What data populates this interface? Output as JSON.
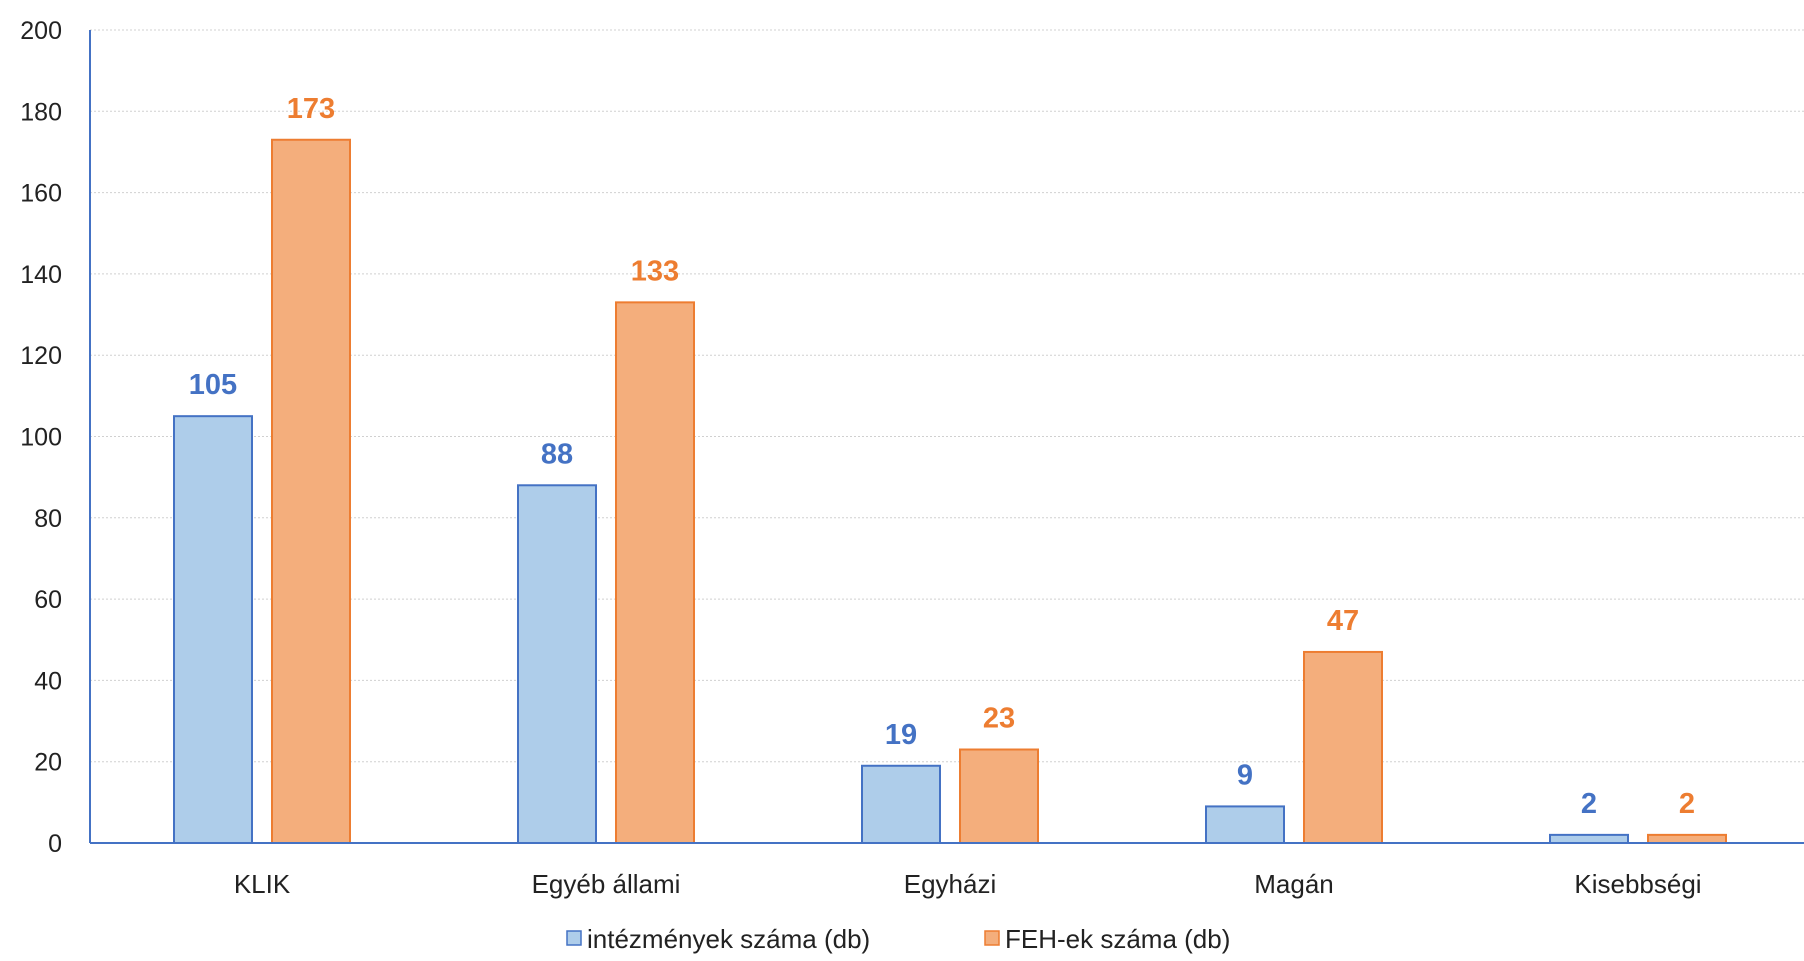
{
  "chart_data": {
    "type": "bar",
    "title": "",
    "xlabel": "",
    "ylabel": "",
    "categories": [
      "KLIK",
      "Egyéb állami",
      "Egyházi",
      "Magán",
      "Kisebbségi"
    ],
    "series": [
      {
        "name": "intézmények száma (db)",
        "values": [
          105,
          88,
          19,
          9,
          2
        ],
        "fill": "#aecdea",
        "stroke": "#4472c4",
        "label_color": "#4472c4"
      },
      {
        "name": "FEH-ek száma (db)",
        "values": [
          173,
          133,
          23,
          47,
          2
        ],
        "fill": "#f4ae7c",
        "stroke": "#ed7d31",
        "label_color": "#ed7d31"
      }
    ],
    "ylim": [
      0,
      200
    ],
    "yticks": [
      0,
      20,
      40,
      60,
      80,
      100,
      120,
      140,
      160,
      180,
      200
    ],
    "grid": true,
    "legend": "bottom",
    "axis_color": "#4472c4",
    "grid_color": "#d0d0d0"
  }
}
